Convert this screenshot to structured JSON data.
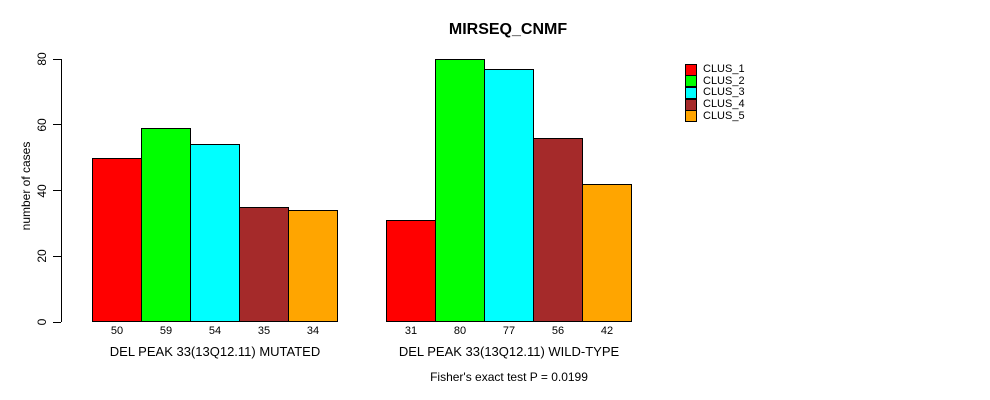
{
  "chart_data": {
    "type": "bar",
    "title": "MIRSEQ_CNMF",
    "ylabel": "number of cases",
    "ylim": [
      0,
      80
    ],
    "yticks": [
      0,
      20,
      40,
      60,
      80
    ],
    "grid": false,
    "legend_position": "right",
    "bar_value_labels_shown": true,
    "groups": [
      {
        "label": "DEL PEAK 33(13Q12.11) MUTATED",
        "values": [
          50,
          59,
          54,
          35,
          34
        ]
      },
      {
        "label": "DEL PEAK 33(13Q12.11) WILD-TYPE",
        "values": [
          31,
          80,
          77,
          56,
          42
        ]
      }
    ],
    "series": [
      {
        "name": "CLUS_1",
        "color": "#FF0000"
      },
      {
        "name": "CLUS_2",
        "color": "#00FF00"
      },
      {
        "name": "CLUS_3",
        "color": "#00FFFF"
      },
      {
        "name": "CLUS_4",
        "color": "#A52A2A"
      },
      {
        "name": "CLUS_5",
        "color": "#FFA500"
      }
    ],
    "annotation": "Fisher's exact test P = 0.0199"
  }
}
